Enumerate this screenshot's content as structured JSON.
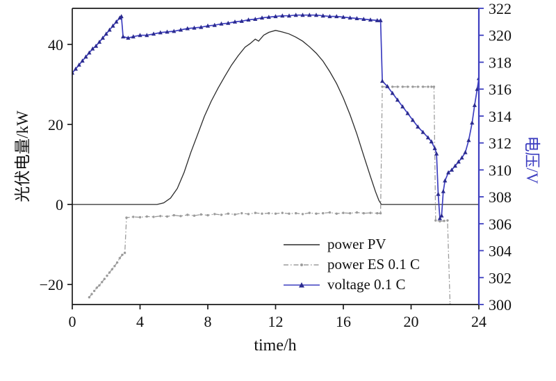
{
  "chart_data": {
    "type": "line",
    "title": "",
    "xlabel": "time/h",
    "ylabel_left": "光伏电量/kW",
    "ylabel_right": "电压/V",
    "xlim": [
      0,
      24
    ],
    "ylim_left": [
      -25,
      49
    ],
    "ylim_right": [
      300,
      322
    ],
    "grid": false,
    "legend_position": "inside lower-right, no frame",
    "x_ticks": [
      0,
      4,
      8,
      12,
      16,
      20,
      24
    ],
    "x_tick_labels": [
      "0",
      "4",
      "8",
      "12",
      "16",
      "20",
      "24"
    ],
    "y_ticks_left": [
      -20,
      0,
      20,
      40
    ],
    "y_tick_labels_left": [
      "−20",
      "0",
      "20",
      "40"
    ],
    "y_ticks_right": [
      300,
      302,
      304,
      306,
      308,
      310,
      312,
      314,
      316,
      318,
      320,
      322
    ],
    "y_tick_labels_right": [
      "300",
      "302",
      "304",
      "306",
      "308",
      "310",
      "312",
      "314",
      "316",
      "318",
      "320",
      "322"
    ],
    "colors": {
      "pv": "#2a2a2a",
      "es": "#9b9b9b",
      "voltage": "#3d3ec0",
      "voltage_marker": "#2b2b8f",
      "axis": "#1a1a1a"
    },
    "series": [
      {
        "name": "power PV",
        "axis": "left",
        "color": "#2a2a2a",
        "style": "solid",
        "marker": "none",
        "points": [
          [
            0,
            0
          ],
          [
            0.5,
            0
          ],
          [
            1,
            0
          ],
          [
            1.5,
            0
          ],
          [
            2,
            0
          ],
          [
            2.5,
            0
          ],
          [
            3,
            0
          ],
          [
            3.5,
            0
          ],
          [
            4,
            0
          ],
          [
            4.5,
            0
          ],
          [
            5,
            0
          ],
          [
            5.4,
            0.4
          ],
          [
            5.8,
            1.6
          ],
          [
            6.2,
            4
          ],
          [
            6.6,
            8
          ],
          [
            7,
            13
          ],
          [
            7.4,
            17.5
          ],
          [
            7.8,
            22
          ],
          [
            8.2,
            25.8
          ],
          [
            8.6,
            29
          ],
          [
            9,
            32
          ],
          [
            9.4,
            34.8
          ],
          [
            9.8,
            37.2
          ],
          [
            10.2,
            39.3
          ],
          [
            10.5,
            40.2
          ],
          [
            10.8,
            41.3
          ],
          [
            11,
            40.8
          ],
          [
            11.3,
            42.3
          ],
          [
            11.6,
            43
          ],
          [
            12,
            43.5
          ],
          [
            12.4,
            43.1
          ],
          [
            12.8,
            42.6
          ],
          [
            13.2,
            41.8
          ],
          [
            13.6,
            40.8
          ],
          [
            14,
            39.4
          ],
          [
            14.4,
            37.8
          ],
          [
            14.8,
            35.8
          ],
          [
            15.2,
            33.2
          ],
          [
            15.6,
            30.2
          ],
          [
            16,
            26.6
          ],
          [
            16.4,
            22.4
          ],
          [
            16.8,
            17.6
          ],
          [
            17.2,
            12.2
          ],
          [
            17.6,
            7
          ],
          [
            17.9,
            3.2
          ],
          [
            18.1,
            1
          ],
          [
            18.25,
            0
          ],
          [
            19,
            0
          ],
          [
            20,
            0
          ],
          [
            21,
            0
          ],
          [
            22,
            0
          ],
          [
            23,
            0
          ],
          [
            24,
            0
          ]
        ]
      },
      {
        "name": "power ES 0.1 C",
        "axis": "left",
        "color": "#9b9b9b",
        "style": "dashdot",
        "marker": "dot",
        "points": [
          [
            1,
            -23.2
          ],
          [
            1.15,
            -22.4
          ],
          [
            1.3,
            -21.6
          ],
          [
            1.45,
            -20.8
          ],
          [
            1.6,
            -20.2
          ],
          [
            1.75,
            -19.4
          ],
          [
            1.9,
            -18.6
          ],
          [
            2.05,
            -17.8
          ],
          [
            2.2,
            -17
          ],
          [
            2.35,
            -16.2
          ],
          [
            2.5,
            -15.4
          ],
          [
            2.65,
            -14.5
          ],
          [
            2.8,
            -13.4
          ],
          [
            2.95,
            -12.6
          ],
          [
            3.1,
            -12.1
          ],
          [
            3.2,
            -3.3
          ],
          [
            3.6,
            -3.1
          ],
          [
            4,
            -3.2
          ],
          [
            4.4,
            -3
          ],
          [
            4.8,
            -3.1
          ],
          [
            5.2,
            -2.9
          ],
          [
            5.6,
            -3
          ],
          [
            6,
            -2.7
          ],
          [
            6.4,
            -2.9
          ],
          [
            6.8,
            -2.6
          ],
          [
            7.2,
            -2.8
          ],
          [
            7.6,
            -2.5
          ],
          [
            8,
            -2.7
          ],
          [
            8.4,
            -2.4
          ],
          [
            8.8,
            -2.6
          ],
          [
            9.2,
            -2.3
          ],
          [
            9.6,
            -2.5
          ],
          [
            10,
            -2.2
          ],
          [
            10.4,
            -2.4
          ],
          [
            10.8,
            -2.1
          ],
          [
            11.2,
            -2.3
          ],
          [
            11.6,
            -2.2
          ],
          [
            12,
            -2.3
          ],
          [
            12.4,
            -2.1
          ],
          [
            12.8,
            -2.3
          ],
          [
            13.2,
            -2.2
          ],
          [
            13.6,
            -2.4
          ],
          [
            14,
            -2.1
          ],
          [
            14.4,
            -2.3
          ],
          [
            14.8,
            -2.2
          ],
          [
            15.2,
            -2
          ],
          [
            15.6,
            -2.3
          ],
          [
            16,
            -2.1
          ],
          [
            16.4,
            -2.2
          ],
          [
            16.8,
            -2
          ],
          [
            17.2,
            -2.2
          ],
          [
            17.6,
            -2.1
          ],
          [
            18,
            -2.2
          ],
          [
            18.2,
            -2.2
          ],
          [
            18.3,
            29.4
          ],
          [
            18.6,
            29.4
          ],
          [
            18.9,
            29.4
          ],
          [
            19.2,
            29.4
          ],
          [
            19.5,
            29.4
          ],
          [
            19.8,
            29.4
          ],
          [
            20.1,
            29.4
          ],
          [
            20.4,
            29.4
          ],
          [
            20.7,
            29.4
          ],
          [
            21,
            29.4
          ],
          [
            21.2,
            29.4
          ],
          [
            21.35,
            29.4
          ],
          [
            21.45,
            -4
          ],
          [
            21.7,
            -4.2
          ],
          [
            21.95,
            -4.1
          ],
          [
            22.15,
            -4
          ],
          [
            22.3,
            -25
          ]
        ]
      },
      {
        "name": "voltage 0.1 C",
        "axis": "right",
        "color": "#3d3ec0",
        "marker_color": "#2b2b8f",
        "style": "solid",
        "marker": "triangle",
        "points": [
          [
            0,
            317.2
          ],
          [
            0.2,
            317.5
          ],
          [
            0.4,
            317.8
          ],
          [
            0.6,
            318.1
          ],
          [
            0.8,
            318.4
          ],
          [
            1,
            318.7
          ],
          [
            1.2,
            319
          ],
          [
            1.4,
            319.2
          ],
          [
            1.6,
            319.5
          ],
          [
            1.8,
            319.8
          ],
          [
            2,
            320.1
          ],
          [
            2.2,
            320.4
          ],
          [
            2.4,
            320.7
          ],
          [
            2.6,
            321
          ],
          [
            2.8,
            321.3
          ],
          [
            2.9,
            321.4
          ],
          [
            3,
            319.9
          ],
          [
            3.3,
            319.8
          ],
          [
            3.6,
            319.9
          ],
          [
            4,
            320
          ],
          [
            4.4,
            320
          ],
          [
            4.8,
            320.1
          ],
          [
            5.2,
            320.2
          ],
          [
            5.6,
            320.25
          ],
          [
            6,
            320.3
          ],
          [
            6.4,
            320.4
          ],
          [
            6.8,
            320.5
          ],
          [
            7.2,
            320.55
          ],
          [
            7.6,
            320.6
          ],
          [
            8,
            320.7
          ],
          [
            8.4,
            320.75
          ],
          [
            8.8,
            320.85
          ],
          [
            9.2,
            320.9
          ],
          [
            9.6,
            321
          ],
          [
            10,
            321.05
          ],
          [
            10.4,
            321.15
          ],
          [
            10.8,
            321.2
          ],
          [
            11.2,
            321.3
          ],
          [
            11.6,
            321.35
          ],
          [
            12,
            321.4
          ],
          [
            12.4,
            321.45
          ],
          [
            12.8,
            321.45
          ],
          [
            13.2,
            321.5
          ],
          [
            13.6,
            321.5
          ],
          [
            14,
            321.5
          ],
          [
            14.4,
            321.5
          ],
          [
            14.8,
            321.45
          ],
          [
            15.2,
            321.4
          ],
          [
            15.6,
            321.4
          ],
          [
            16,
            321.35
          ],
          [
            16.4,
            321.3
          ],
          [
            16.8,
            321.25
          ],
          [
            17.2,
            321.2
          ],
          [
            17.6,
            321.15
          ],
          [
            18,
            321.1
          ],
          [
            18.2,
            321.1
          ],
          [
            18.3,
            316.6
          ],
          [
            18.6,
            316.2
          ],
          [
            18.9,
            315.7
          ],
          [
            19.2,
            315.2
          ],
          [
            19.5,
            314.7
          ],
          [
            19.8,
            314.2
          ],
          [
            20.1,
            313.7
          ],
          [
            20.4,
            313.2
          ],
          [
            20.7,
            312.8
          ],
          [
            21,
            312.4
          ],
          [
            21.2,
            312.1
          ],
          [
            21.4,
            311.6
          ],
          [
            21.5,
            311.2
          ],
          [
            21.6,
            308.2
          ],
          [
            21.7,
            306.4
          ],
          [
            21.8,
            306.6
          ],
          [
            21.9,
            308.4
          ],
          [
            22,
            309.2
          ],
          [
            22.2,
            309.8
          ],
          [
            22.4,
            310
          ],
          [
            22.6,
            310.3
          ],
          [
            22.8,
            310.6
          ],
          [
            23,
            310.9
          ],
          [
            23.2,
            311.3
          ],
          [
            23.4,
            312.2
          ],
          [
            23.6,
            313.5
          ],
          [
            23.75,
            314.8
          ],
          [
            23.9,
            316
          ],
          [
            24,
            316.8
          ]
        ]
      }
    ]
  }
}
